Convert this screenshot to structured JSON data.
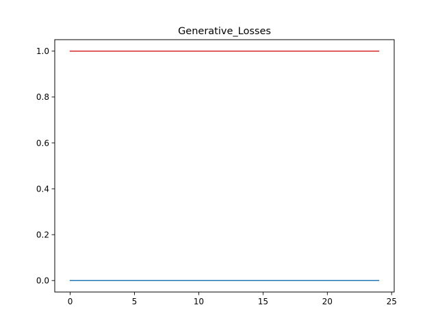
{
  "chart_data": {
    "type": "line",
    "title": "Generative_Losses",
    "xlabel": "",
    "ylabel": "",
    "xlim": [
      -1.2,
      25.2
    ],
    "ylim": [
      -0.05,
      1.05
    ],
    "x_ticks": [
      0,
      5,
      10,
      15,
      20,
      25
    ],
    "x_tick_labels": [
      "0",
      "5",
      "10",
      "15",
      "20",
      "25"
    ],
    "y_ticks": [
      0.0,
      0.2,
      0.4,
      0.6,
      0.8,
      1.0
    ],
    "y_tick_labels": [
      "0.0",
      "0.2",
      "0.4",
      "0.6",
      "0.8",
      "1.0"
    ],
    "grid": false,
    "legend": "none",
    "x": [
      0,
      1,
      2,
      3,
      4,
      5,
      6,
      7,
      8,
      9,
      10,
      11,
      12,
      13,
      14,
      15,
      16,
      17,
      18,
      19,
      20,
      21,
      22,
      23,
      24
    ],
    "series": [
      {
        "color": "#d62728",
        "values": [
          1,
          1,
          1,
          1,
          1,
          1,
          1,
          1,
          1,
          1,
          1,
          1,
          1,
          1,
          1,
          1,
          1,
          1,
          1,
          1,
          1,
          1,
          1,
          1,
          1
        ]
      },
      {
        "color": "#1f77b4",
        "values": [
          0,
          0,
          0,
          0,
          0,
          0,
          0,
          0,
          0,
          0,
          0,
          0,
          0,
          0,
          0,
          0,
          0,
          0,
          0,
          0,
          0,
          0,
          0,
          0,
          0
        ]
      }
    ]
  }
}
